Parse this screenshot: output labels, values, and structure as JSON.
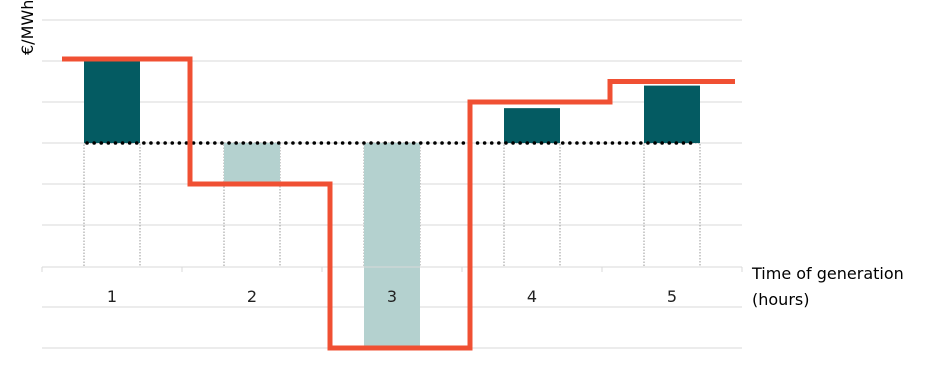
{
  "chart_data": {
    "type": "bar",
    "categories": [
      "1",
      "2",
      "3",
      "4",
      "5"
    ],
    "ylabel": "€/MWh",
    "xlabel_lines": [
      "Time of generation",
      "(hours)"
    ],
    "ylim": [
      -2,
      6
    ],
    "ygrid_values": [
      -2,
      -1,
      1,
      2,
      3,
      4,
      5,
      6
    ],
    "grid": true,
    "baseline": 3,
    "bars": [
      {
        "category": "1",
        "from": 3,
        "to": 5,
        "shade": "dark"
      },
      {
        "category": "2",
        "from": 2,
        "to": 3,
        "shade": "light"
      },
      {
        "category": "3",
        "from": -2,
        "to": 3,
        "shade": "light"
      },
      {
        "category": "4",
        "from": 3,
        "to": 3.85,
        "shade": "dark"
      },
      {
        "category": "5",
        "from": 3,
        "to": 4.4,
        "shade": "dark"
      }
    ],
    "price_line": {
      "name": "",
      "values": [
        5.05,
        2,
        -2,
        4,
        4.5,
        4.5
      ]
    },
    "mean_line_value": 3,
    "colors": {
      "dark_bar": "#045b62",
      "light_bar": "#b4d1cf",
      "price_line": "#f05033",
      "mean_line": "#000000",
      "grid": "#d9d9d9",
      "dotted_outline": "#9a9a9a"
    }
  }
}
